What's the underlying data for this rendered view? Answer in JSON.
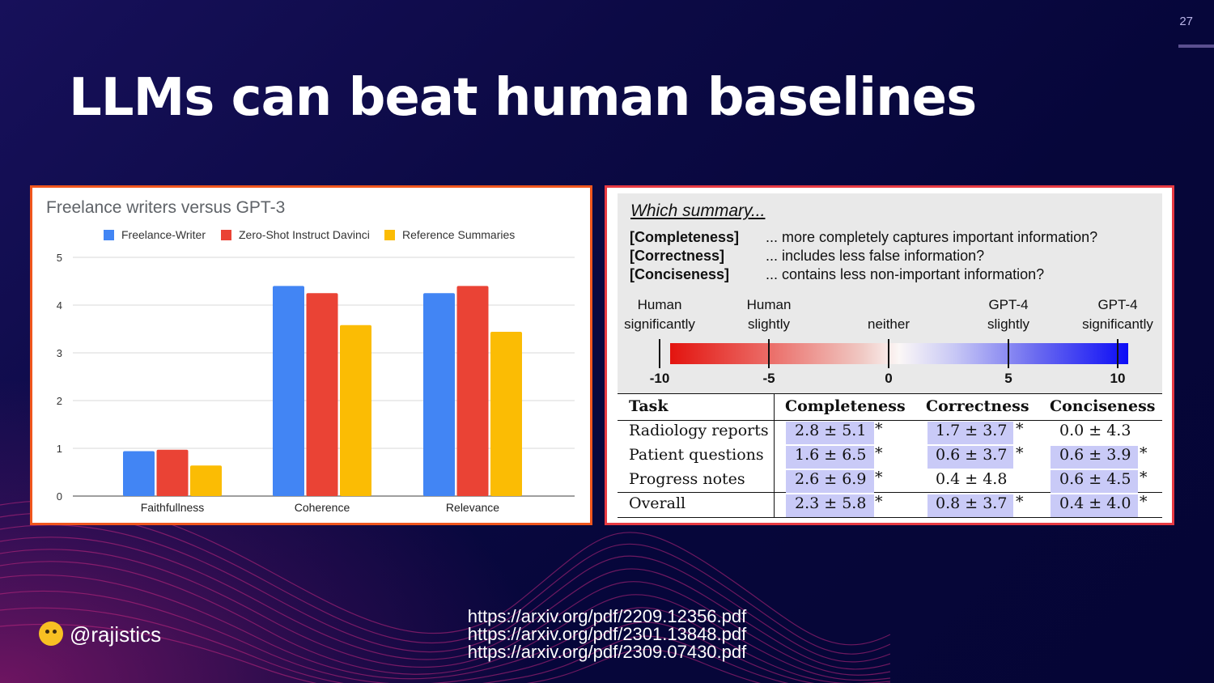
{
  "slide": {
    "number": "27",
    "title": "LLMs can beat human baselines",
    "handle": "@rajistics",
    "links": [
      "https://arxiv.org/pdf/2209.12356.pdf",
      "https://arxiv.org/pdf/2301.13848.pdf",
      "https://arxiv.org/pdf/2309.07430.pdf"
    ]
  },
  "chart_data": [
    {
      "type": "bar",
      "title": "Freelance writers versus GPT-3",
      "categories": [
        "Faithfullness",
        "Coherence",
        "Relevance"
      ],
      "series": [
        {
          "name": "Freelance-Writer",
          "color": "#4285f4",
          "values": [
            0.94,
            4.4,
            4.25
          ]
        },
        {
          "name": "Zero-Shot Instruct Davinci",
          "color": "#ea4335",
          "values": [
            0.97,
            4.25,
            4.4
          ]
        },
        {
          "name": "Reference Summaries",
          "color": "#fbbc04",
          "values": [
            0.64,
            3.58,
            3.44
          ]
        }
      ],
      "ylim": [
        0,
        5
      ],
      "yticks": [
        0,
        1,
        2,
        3,
        4,
        5
      ],
      "xlabel": "",
      "ylabel": "",
      "legend": "top",
      "grid": true
    },
    {
      "type": "table",
      "header": [
        "Task",
        "Completeness",
        "Correctness",
        "Conciseness"
      ],
      "rows": [
        {
          "task": "Radiology reports",
          "completeness": "2.8 ± 5.1",
          "completeness_sig": "*",
          "correctness": "1.7 ± 3.7",
          "correctness_sig": "*",
          "conciseness": "0.0 ± 4.3",
          "conciseness_sig": ""
        },
        {
          "task": "Patient questions",
          "completeness": "1.6 ± 6.5",
          "completeness_sig": "*",
          "correctness": "0.6 ± 3.7",
          "correctness_sig": "*",
          "conciseness": "0.6 ± 3.9",
          "conciseness_sig": "*"
        },
        {
          "task": "Progress notes",
          "completeness": "2.6 ± 6.9",
          "completeness_sig": "*",
          "correctness": "0.4 ± 4.8",
          "correctness_sig": "",
          "conciseness": "0.6 ± 4.5",
          "conciseness_sig": "*"
        },
        {
          "task": "Overall",
          "completeness": "2.3 ± 5.8",
          "completeness_sig": "*",
          "correctness": "0.8 ± 3.7",
          "correctness_sig": "*",
          "conciseness": "0.4 ± 4.0",
          "conciseness_sig": "*"
        }
      ]
    }
  ],
  "survey": {
    "heading": "Which summary...",
    "criteria": [
      {
        "key": "[Completeness]",
        "text": "... more completely captures important information?"
      },
      {
        "key": "[Correctness]",
        "text": "... includes less false information?"
      },
      {
        "key": "[Conciseness]",
        "text": "... contains less non-important information?"
      }
    ],
    "scale_labels": [
      {
        "line1": "Human",
        "line2": "significantly",
        "at": -10
      },
      {
        "line1": "Human",
        "line2": "slightly",
        "at": -5
      },
      {
        "line1": "",
        "line2": "neither",
        "at": 0
      },
      {
        "line1": "GPT-4",
        "line2": "slightly",
        "at": 5
      },
      {
        "line1": "GPT-4",
        "line2": "significantly",
        "at": 10
      }
    ],
    "ticks": [
      "-10",
      "-5",
      "0",
      "5",
      "10"
    ],
    "colors": {
      "human": "#e3140f",
      "gpt4": "#0c0cf6",
      "highlight": "#c9caf7"
    }
  }
}
